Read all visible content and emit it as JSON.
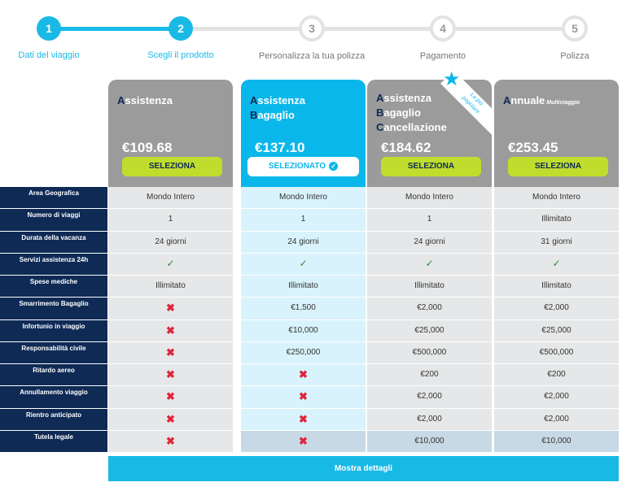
{
  "stepper": {
    "steps": [
      {
        "number": "1",
        "label": "Dati del viaggio"
      },
      {
        "number": "2",
        "label": "Scegli il prodotto"
      },
      {
        "number": "3",
        "label": "Personalizza la tua polizza"
      },
      {
        "number": "4",
        "label": "Pagamento"
      },
      {
        "number": "5",
        "label": "Polizza"
      }
    ],
    "current_step": 2
  },
  "plans": [
    {
      "name_initials": [
        "A"
      ],
      "name_rest": [
        "ssistenza"
      ],
      "tag": "",
      "price": "€109.68",
      "button": "SELEZIONA"
    },
    {
      "name_initials": [
        "A",
        "B"
      ],
      "name_rest": [
        "ssistenza",
        "agaglio"
      ],
      "tag": "",
      "price": "€137.10",
      "button": "SELEZIONATO"
    },
    {
      "name_initials": [
        "A",
        "B",
        "C"
      ],
      "name_rest": [
        "ssistenza",
        "agaglio",
        "ancellazione"
      ],
      "tag": "",
      "price": "€184.62",
      "button": "SELEZIONA",
      "ribbon": [
        "La più",
        "popolare"
      ]
    },
    {
      "name_initials": [
        "A"
      ],
      "name_rest": [
        "nnuale"
      ],
      "tag": "Multiviaggio",
      "price": "€253.45",
      "button": "SELEZIONA"
    }
  ],
  "table": {
    "rows": [
      {
        "label": "Area Geografica",
        "values": [
          "Mondo Intero",
          "Mondo Intero",
          "Mondo Intero",
          "Mondo Intero"
        ]
      },
      {
        "label": "Numero di viaggi",
        "values": [
          "1",
          "1",
          "1",
          "Illimitato"
        ]
      },
      {
        "label": "Durata della vacanza",
        "values": [
          "24 giorni",
          "24 giorni",
          "24 giorni",
          "31 giorni"
        ]
      },
      {
        "label": "Servizi assistenza 24h",
        "values": [
          "✓",
          "✓",
          "✓",
          "✓"
        ]
      },
      {
        "label": "Spese mediche",
        "values": [
          "Illimitato",
          "Illimitato",
          "Illimitato",
          "Illimitato"
        ]
      },
      {
        "label": "Smarrimento Bagaglio",
        "values": [
          "✖",
          "€1,500",
          "€2,000",
          "€2,000"
        ]
      },
      {
        "label": "Infortunio in viaggio",
        "values": [
          "✖",
          "€10,000",
          "€25,000",
          "€25,000"
        ]
      },
      {
        "label": "Responsabilità civile",
        "values": [
          "✖",
          "€250,000",
          "€500,000",
          "€500,000"
        ]
      },
      {
        "label": "Ritardo aereo",
        "values": [
          "✖",
          "✖",
          "€200",
          "€200"
        ]
      },
      {
        "label": "Annullamento viaggio",
        "values": [
          "✖",
          "✖",
          "€2,000",
          "€2,000"
        ]
      },
      {
        "label": "Rientro anticipato",
        "values": [
          "✖",
          "✖",
          "€2,000",
          "€2,000"
        ]
      },
      {
        "label": "Tutela legale",
        "values": [
          "✖",
          "✖",
          "€10,000",
          "€10,000"
        ]
      }
    ]
  },
  "footer": {
    "more_details": "Mostra dettagli"
  },
  "colors": {
    "accent": "#19b9e6",
    "navy": "#0e2a55",
    "button_green": "#c0dd2d",
    "plan_grey": "#9b9b9b"
  }
}
